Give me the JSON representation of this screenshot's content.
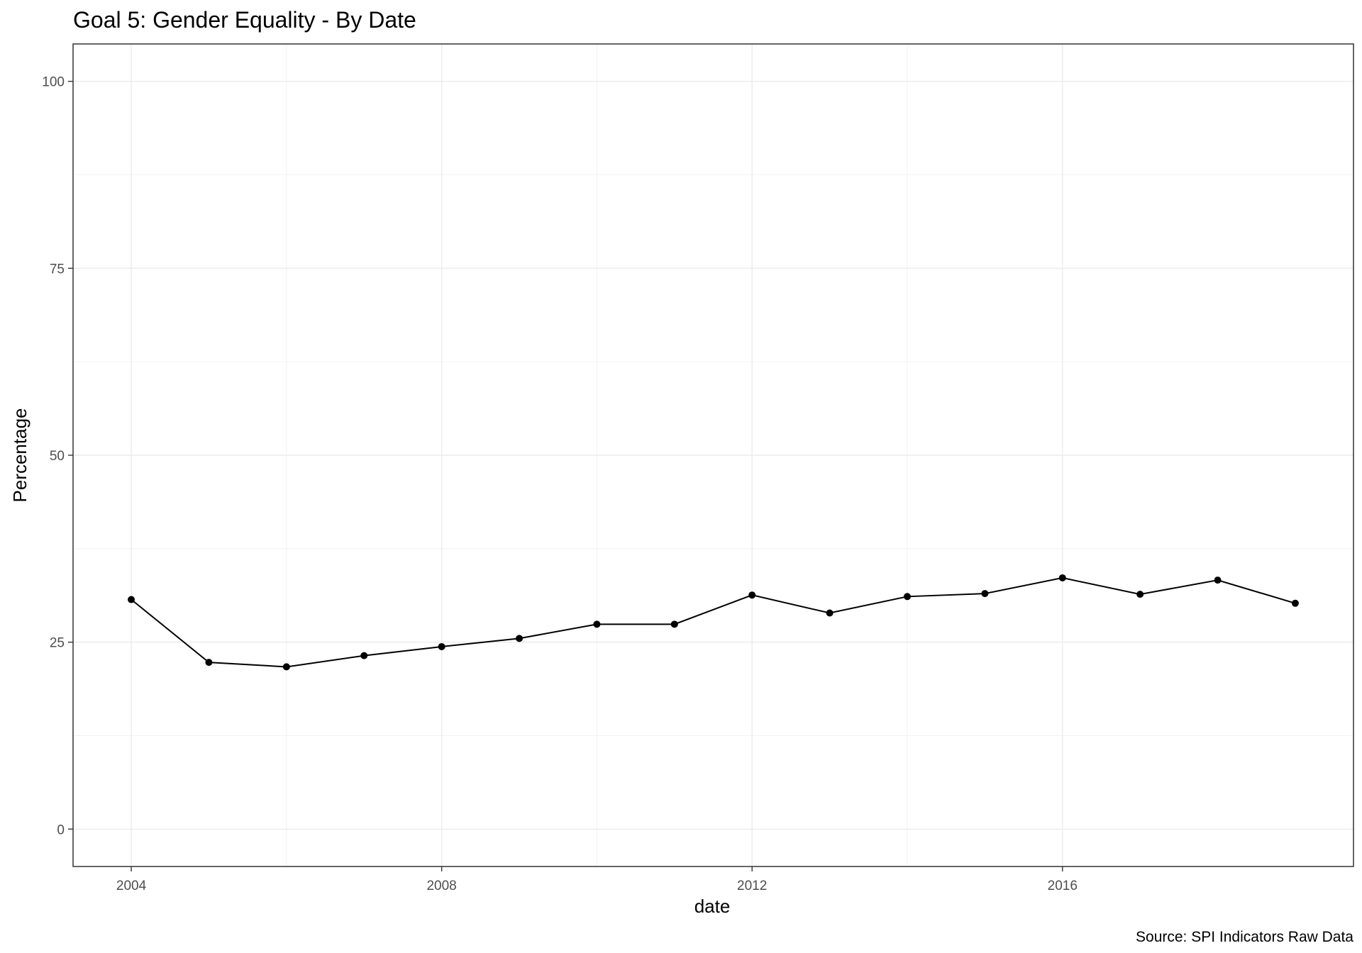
{
  "chart_data": {
    "type": "line",
    "title": "Goal 5: Gender Equality - By Date",
    "xlabel": "date",
    "ylabel": "Percentage",
    "caption": "Source: SPI Indicators Raw Data",
    "x_ticks": [
      "2004",
      "2008",
      "2012",
      "2016"
    ],
    "y_ticks": [
      "0",
      "25",
      "50",
      "75",
      "100"
    ],
    "xlim": [
      2003.25,
      2019.75
    ],
    "ylim": [
      -5,
      105
    ],
    "grid": true,
    "series": [
      {
        "x": [
          2004,
          2005,
          2006,
          2007,
          2008,
          2009,
          2010,
          2011,
          2012,
          2013,
          2014,
          2015,
          2016,
          2017,
          2018,
          2019
        ],
        "values": [
          30.7,
          22.3,
          21.7,
          23.2,
          24.4,
          25.5,
          27.4,
          27.4,
          31.3,
          28.9,
          31.1,
          31.5,
          33.6,
          31.4,
          33.3,
          30.2
        ]
      }
    ]
  }
}
